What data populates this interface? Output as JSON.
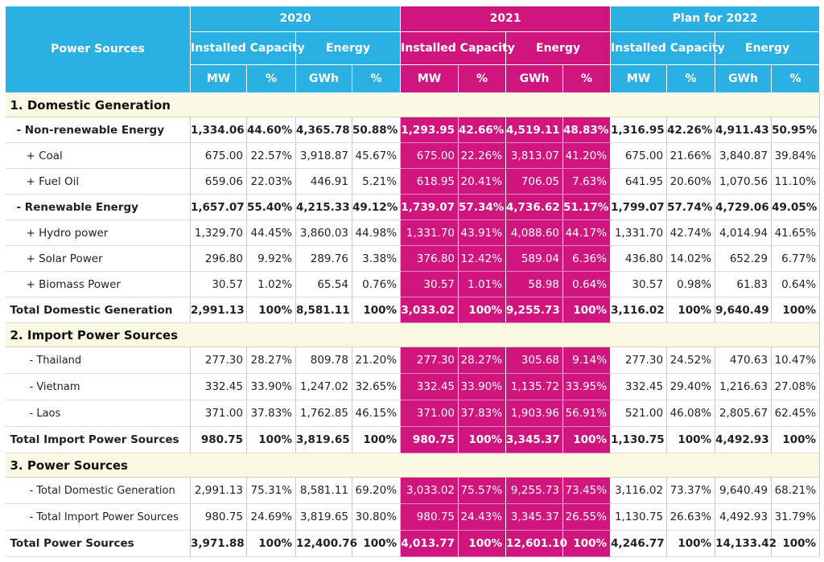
{
  "header": {
    "power_sources": "Power Sources",
    "years": [
      "2020",
      "2021",
      "Plan for 2022"
    ],
    "installed_capacity": "Installed Capacity",
    "energy": "Energy",
    "mw": "MW",
    "gwh": "GWh",
    "pct": "%"
  },
  "colors": {
    "blue": "#2ab0e2",
    "pink": "#d1157f",
    "section": "#fbf8e3"
  },
  "sections": [
    {
      "title": "1. Domestic Generation",
      "rows": [
        {
          "label": "- Non-renewable Energy",
          "bold": true,
          "indent": 1,
          "values": [
            "1,334.06",
            "44.60%",
            "4,365.78",
            "50.88%",
            "1,293.95",
            "42.66%",
            "4,519.11",
            "48.83%",
            "1,316.95",
            "42.26%",
            "4,911.43",
            "50.95%"
          ]
        },
        {
          "label": "+ Coal",
          "bold": false,
          "indent": 2,
          "values": [
            "675.00",
            "22.57%",
            "3,918.87",
            "45.67%",
            "675.00",
            "22.26%",
            "3,813.07",
            "41.20%",
            "675.00",
            "21.66%",
            "3,840.87",
            "39.84%"
          ]
        },
        {
          "label": "+ Fuel Oil",
          "bold": false,
          "indent": 2,
          "values": [
            "659.06",
            "22.03%",
            "446.91",
            "5.21%",
            "618.95",
            "20.41%",
            "706.05",
            "7.63%",
            "641.95",
            "20.60%",
            "1,070.56",
            "11.10%"
          ]
        },
        {
          "label": "- Renewable Energy",
          "bold": true,
          "indent": 1,
          "values": [
            "1,657.07",
            "55.40%",
            "4,215.33",
            "49.12%",
            "1,739.07",
            "57.34%",
            "4,736.62",
            "51.17%",
            "1,799.07",
            "57.74%",
            "4,729.06",
            "49.05%"
          ]
        },
        {
          "label": "+ Hydro power",
          "bold": false,
          "indent": 2,
          "values": [
            "1,329.70",
            "44.45%",
            "3,860.03",
            "44.98%",
            "1,331.70",
            "43.91%",
            "4,088.60",
            "44.17%",
            "1,331.70",
            "42.74%",
            "4,014.94",
            "41.65%"
          ]
        },
        {
          "label": "+ Solar Power",
          "bold": false,
          "indent": 2,
          "values": [
            "296.80",
            "9.92%",
            "289.76",
            "3.38%",
            "376.80",
            "12.42%",
            "589.04",
            "6.36%",
            "436.80",
            "14.02%",
            "652.29",
            "6.77%"
          ]
        },
        {
          "label": "+ Biomass Power",
          "bold": false,
          "indent": 2,
          "values": [
            "30.57",
            "1.02%",
            "65.54",
            "0.76%",
            "30.57",
            "1.01%",
            "58.98",
            "0.64%",
            "30.57",
            "0.98%",
            "61.83",
            "0.64%"
          ]
        },
        {
          "label": "Total Domestic Generation",
          "bold": true,
          "indent": 0,
          "values": [
            "2,991.13",
            "100%",
            "8,581.11",
            "100%",
            "3,033.02",
            "100%",
            "9,255.73",
            "100%",
            "3,116.02",
            "100%",
            "9,640.49",
            "100%"
          ]
        }
      ]
    },
    {
      "title": "2. Import Power Sources",
      "rows": [
        {
          "label": "- Thailand",
          "bold": false,
          "indent": 3,
          "values": [
            "277.30",
            "28.27%",
            "809.78",
            "21.20%",
            "277.30",
            "28.27%",
            "305.68",
            "9.14%",
            "277.30",
            "24.52%",
            "470.63",
            "10.47%"
          ]
        },
        {
          "label": "- Vietnam",
          "bold": false,
          "indent": 3,
          "values": [
            "332.45",
            "33.90%",
            "1,247.02",
            "32.65%",
            "332.45",
            "33.90%",
            "1,135.72",
            "33.95%",
            "332.45",
            "29.40%",
            "1,216.63",
            "27.08%"
          ]
        },
        {
          "label": "- Laos",
          "bold": false,
          "indent": 3,
          "values": [
            "371.00",
            "37.83%",
            "1,762.85",
            "46.15%",
            "371.00",
            "37.83%",
            "1,903.96",
            "56.91%",
            "521.00",
            "46.08%",
            "2,805.67",
            "62.45%"
          ]
        },
        {
          "label": "Total Import Power Sources",
          "bold": true,
          "indent": 0,
          "values": [
            "980.75",
            "100%",
            "3,819.65",
            "100%",
            "980.75",
            "100%",
            "3,345.37",
            "100%",
            "1,130.75",
            "100%",
            "4,492.93",
            "100%"
          ]
        }
      ]
    },
    {
      "title": "3. Power Sources",
      "rows": [
        {
          "label": "- Total Domestic Generation",
          "bold": false,
          "indent": 3,
          "values": [
            "2,991.13",
            "75.31%",
            "8,581.11",
            "69.20%",
            "3,033.02",
            "75.57%",
            "9,255.73",
            "73.45%",
            "3,116.02",
            "73.37%",
            "9,640.49",
            "68.21%"
          ]
        },
        {
          "label": "- Total Import Power Sources",
          "bold": false,
          "indent": 3,
          "values": [
            "980.75",
            "24.69%",
            "3,819.65",
            "30.80%",
            "980.75",
            "24.43%",
            "3,345.37",
            "26.55%",
            "1,130.75",
            "26.63%",
            "4,492.93",
            "31.79%"
          ]
        },
        {
          "label": "Total Power Sources",
          "bold": true,
          "indent": 0,
          "values": [
            "3,971.88",
            "100%",
            "12,400.76",
            "100%",
            "4,013.77",
            "100%",
            "12,601.10",
            "100%",
            "4,246.77",
            "100%",
            "14,133.42",
            "100%"
          ]
        }
      ]
    }
  ]
}
